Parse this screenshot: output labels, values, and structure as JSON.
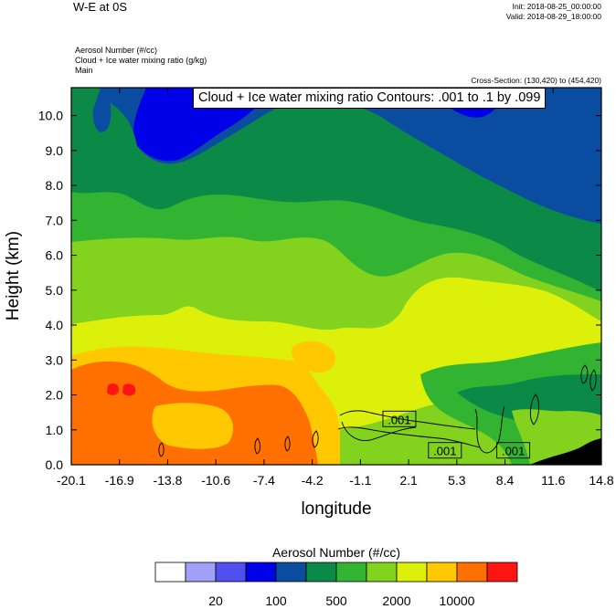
{
  "header": {
    "title": "W-E at 0S",
    "init": "Init: 2018-08-25_00:00:00",
    "valid": "Valid: 2018-08-29_18:00:00",
    "fields": [
      "Aerosol Number   (#/cc)",
      "Cloud + Ice water mixing ratio   (g/kg)",
      "Main"
    ],
    "cross_section": "Cross-Section: (130,420) to (454,420)",
    "contour_note": "Cloud + Ice water mixing ratio Contours: .001 to .1 by .099"
  },
  "chart_data": {
    "type": "heatmap",
    "xlabel": "longitude",
    "ylabel": "Height (km)",
    "x_ticks": [
      "-20.1",
      "-16.9",
      "-13.8",
      "-10.6",
      "-7.4",
      "-4.2",
      "-1.1",
      "2.1",
      "5.3",
      "8.4",
      "11.6",
      "14.8"
    ],
    "y_ticks": [
      "0.0",
      "1.0",
      "2.0",
      "3.0",
      "4.0",
      "5.0",
      "6.0",
      "7.0",
      "8.0",
      "9.0",
      "10.0"
    ],
    "xlim": [
      -20.1,
      14.8
    ],
    "ylim": [
      0,
      10.8
    ],
    "contour_labels": [
      {
        "text": ".001",
        "x": 1.5,
        "y": 1.3
      },
      {
        "text": ".001",
        "x": 4.5,
        "y": 0.4
      },
      {
        "text": ".001",
        "x": 9.0,
        "y": 0.4
      }
    ],
    "colorbar": {
      "title": "Aerosol Number  (#/cc)",
      "colors": [
        "#ffffff",
        "#a0a0f8",
        "#5050f0",
        "#0000e8",
        "#0a4ca0",
        "#0a8a46",
        "#32b432",
        "#82d21e",
        "#dcf00a",
        "#ffc800",
        "#ff7000",
        "#ff1414"
      ],
      "tick_labels": [
        "20",
        "100",
        "500",
        "2000",
        "10000"
      ],
      "tick_after_box": [
        2,
        4,
        6,
        8,
        10
      ]
    }
  }
}
